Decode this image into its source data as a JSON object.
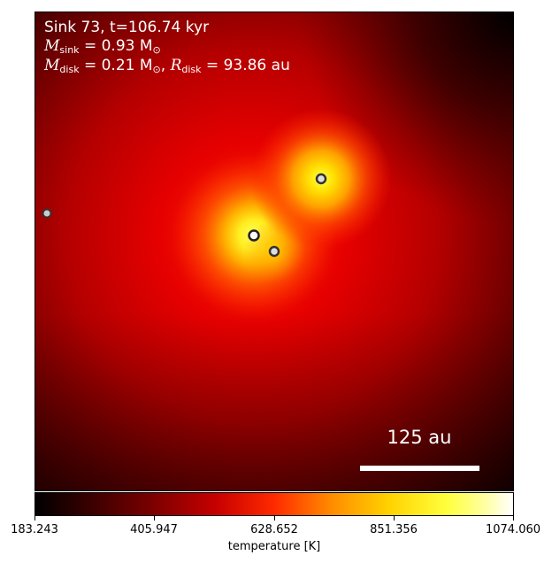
{
  "annotation": {
    "line1": "Sink 73, t=106.74 kyr",
    "m_sink_symbol": "M",
    "m_sink_sub": "sink",
    "m_sink_value": " = 0.93 M",
    "m_sink_unit_sub": "⊙",
    "m_disk_symbol": "M",
    "m_disk_sub": "disk",
    "m_disk_value": " = 0.21 M",
    "m_disk_unit_sub": "⊙",
    "sep": ", ",
    "r_disk_symbol": "R",
    "r_disk_sub": "disk",
    "r_disk_value": " = 93.86 au"
  },
  "scale_bar": {
    "label": "125 au"
  },
  "colorbar": {
    "label": "temperature [K]",
    "ticks": [
      "183.243",
      "405.947",
      "628.652",
      "851.356",
      "1074.060"
    ],
    "colormap": "hot"
  },
  "sinks": [
    {
      "id": "sink-main",
      "color": "#ffffff"
    },
    {
      "id": "sink-companion-upper",
      "color": "#dddddd"
    },
    {
      "id": "sink-companion-lower",
      "color": "#dddddd"
    },
    {
      "id": "sink-edge-left",
      "color": "#cccccc"
    }
  ]
}
